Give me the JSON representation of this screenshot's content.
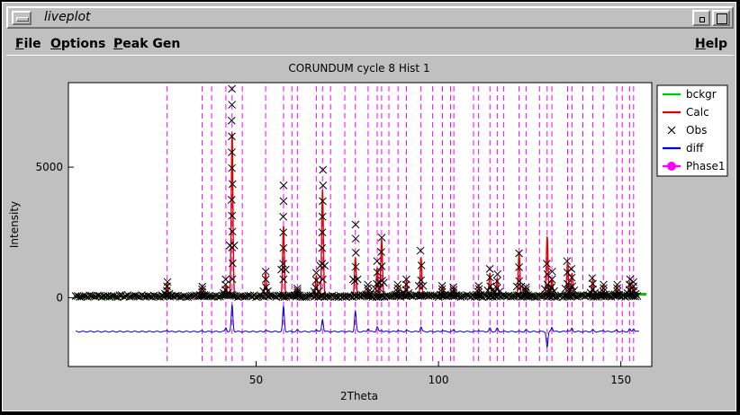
{
  "window": {
    "title": "liveplot"
  },
  "menus": [
    "File",
    "Options",
    "Peak Gen"
  ],
  "help_label": "Help",
  "chart_data": {
    "type": "line",
    "title": "CORUNDUM cycle 8 Hist 1",
    "xlabel": "2Theta",
    "ylabel": "Intensity",
    "xlim": [
      0,
      157
    ],
    "ylim": [
      -2500,
      8100
    ],
    "xticks": [
      50,
      100,
      150
    ],
    "yticks": [
      0,
      5000
    ],
    "legend_position": "right",
    "legend": [
      {
        "name": "bckgr",
        "color": "#00c800"
      },
      {
        "name": "Calc",
        "color": "#e00000"
      },
      {
        "name": "Obs",
        "color": "#000000"
      },
      {
        "name": "diff",
        "color": "#0000e0"
      },
      {
        "name": "Phase1",
        "color": "#ff00ff"
      }
    ],
    "reflections": [
      25.6,
      35.2,
      37.8,
      41.7,
      43.4,
      46.2,
      52.6,
      57.5,
      59.8,
      61.3,
      66.5,
      68.2,
      70.4,
      74.3,
      77.2,
      80.7,
      83.2,
      84.4,
      86.4,
      88.9,
      91.2,
      95.2,
      98.4,
      101.1,
      103.3,
      104.2,
      109.6,
      111.0,
      114.1,
      116.1,
      117.9,
      122.1,
      124.0,
      127.7,
      129.8,
      131.1,
      135.4,
      136.6,
      139.6,
      142.3,
      145.2,
      148.9,
      150.4,
      152.4,
      153.5
    ],
    "peaks": [
      {
        "x": 25.6,
        "calc": 500,
        "obs": 600
      },
      {
        "x": 35.2,
        "calc": 380,
        "obs": 420
      },
      {
        "x": 41.7,
        "calc": 450,
        "obs": 700
      },
      {
        "x": 43.4,
        "calc": 6300,
        "obs": 8000
      },
      {
        "x": 52.6,
        "calc": 900,
        "obs": 1000
      },
      {
        "x": 57.5,
        "calc": 2700,
        "obs": 4300
      },
      {
        "x": 61.3,
        "calc": 250,
        "obs": 350
      },
      {
        "x": 66.5,
        "calc": 800,
        "obs": 950
      },
      {
        "x": 68.2,
        "calc": 4100,
        "obs": 4900
      },
      {
        "x": 77.2,
        "calc": 1500,
        "obs": 2800
      },
      {
        "x": 80.7,
        "calc": 300,
        "obs": 500
      },
      {
        "x": 83.2,
        "calc": 1100,
        "obs": 1400
      },
      {
        "x": 84.4,
        "calc": 2200,
        "obs": 2300
      },
      {
        "x": 88.9,
        "calc": 400,
        "obs": 500
      },
      {
        "x": 91.2,
        "calc": 600,
        "obs": 700
      },
      {
        "x": 95.2,
        "calc": 1500,
        "obs": 1800
      },
      {
        "x": 101.1,
        "calc": 350,
        "obs": 450
      },
      {
        "x": 104.2,
        "calc": 300,
        "obs": 400
      },
      {
        "x": 111.0,
        "calc": 350,
        "obs": 450
      },
      {
        "x": 114.1,
        "calc": 900,
        "obs": 1100
      },
      {
        "x": 116.1,
        "calc": 700,
        "obs": 900
      },
      {
        "x": 122.1,
        "calc": 1700,
        "obs": 1700
      },
      {
        "x": 124.0,
        "calc": 300,
        "obs": 400
      },
      {
        "x": 129.8,
        "calc": 2300,
        "obs": 1300
      },
      {
        "x": 131.1,
        "calc": 700,
        "obs": 1000
      },
      {
        "x": 135.4,
        "calc": 1300,
        "obs": 1400
      },
      {
        "x": 136.6,
        "calc": 900,
        "obs": 1100
      },
      {
        "x": 142.3,
        "calc": 650,
        "obs": 750
      },
      {
        "x": 145.2,
        "calc": 400,
        "obs": 500
      },
      {
        "x": 148.9,
        "calc": 400,
        "obs": 500
      },
      {
        "x": 152.4,
        "calc": 550,
        "obs": 700
      },
      {
        "x": 153.5,
        "calc": 400,
        "obs": 600
      }
    ],
    "diff_offset": -1300
  }
}
